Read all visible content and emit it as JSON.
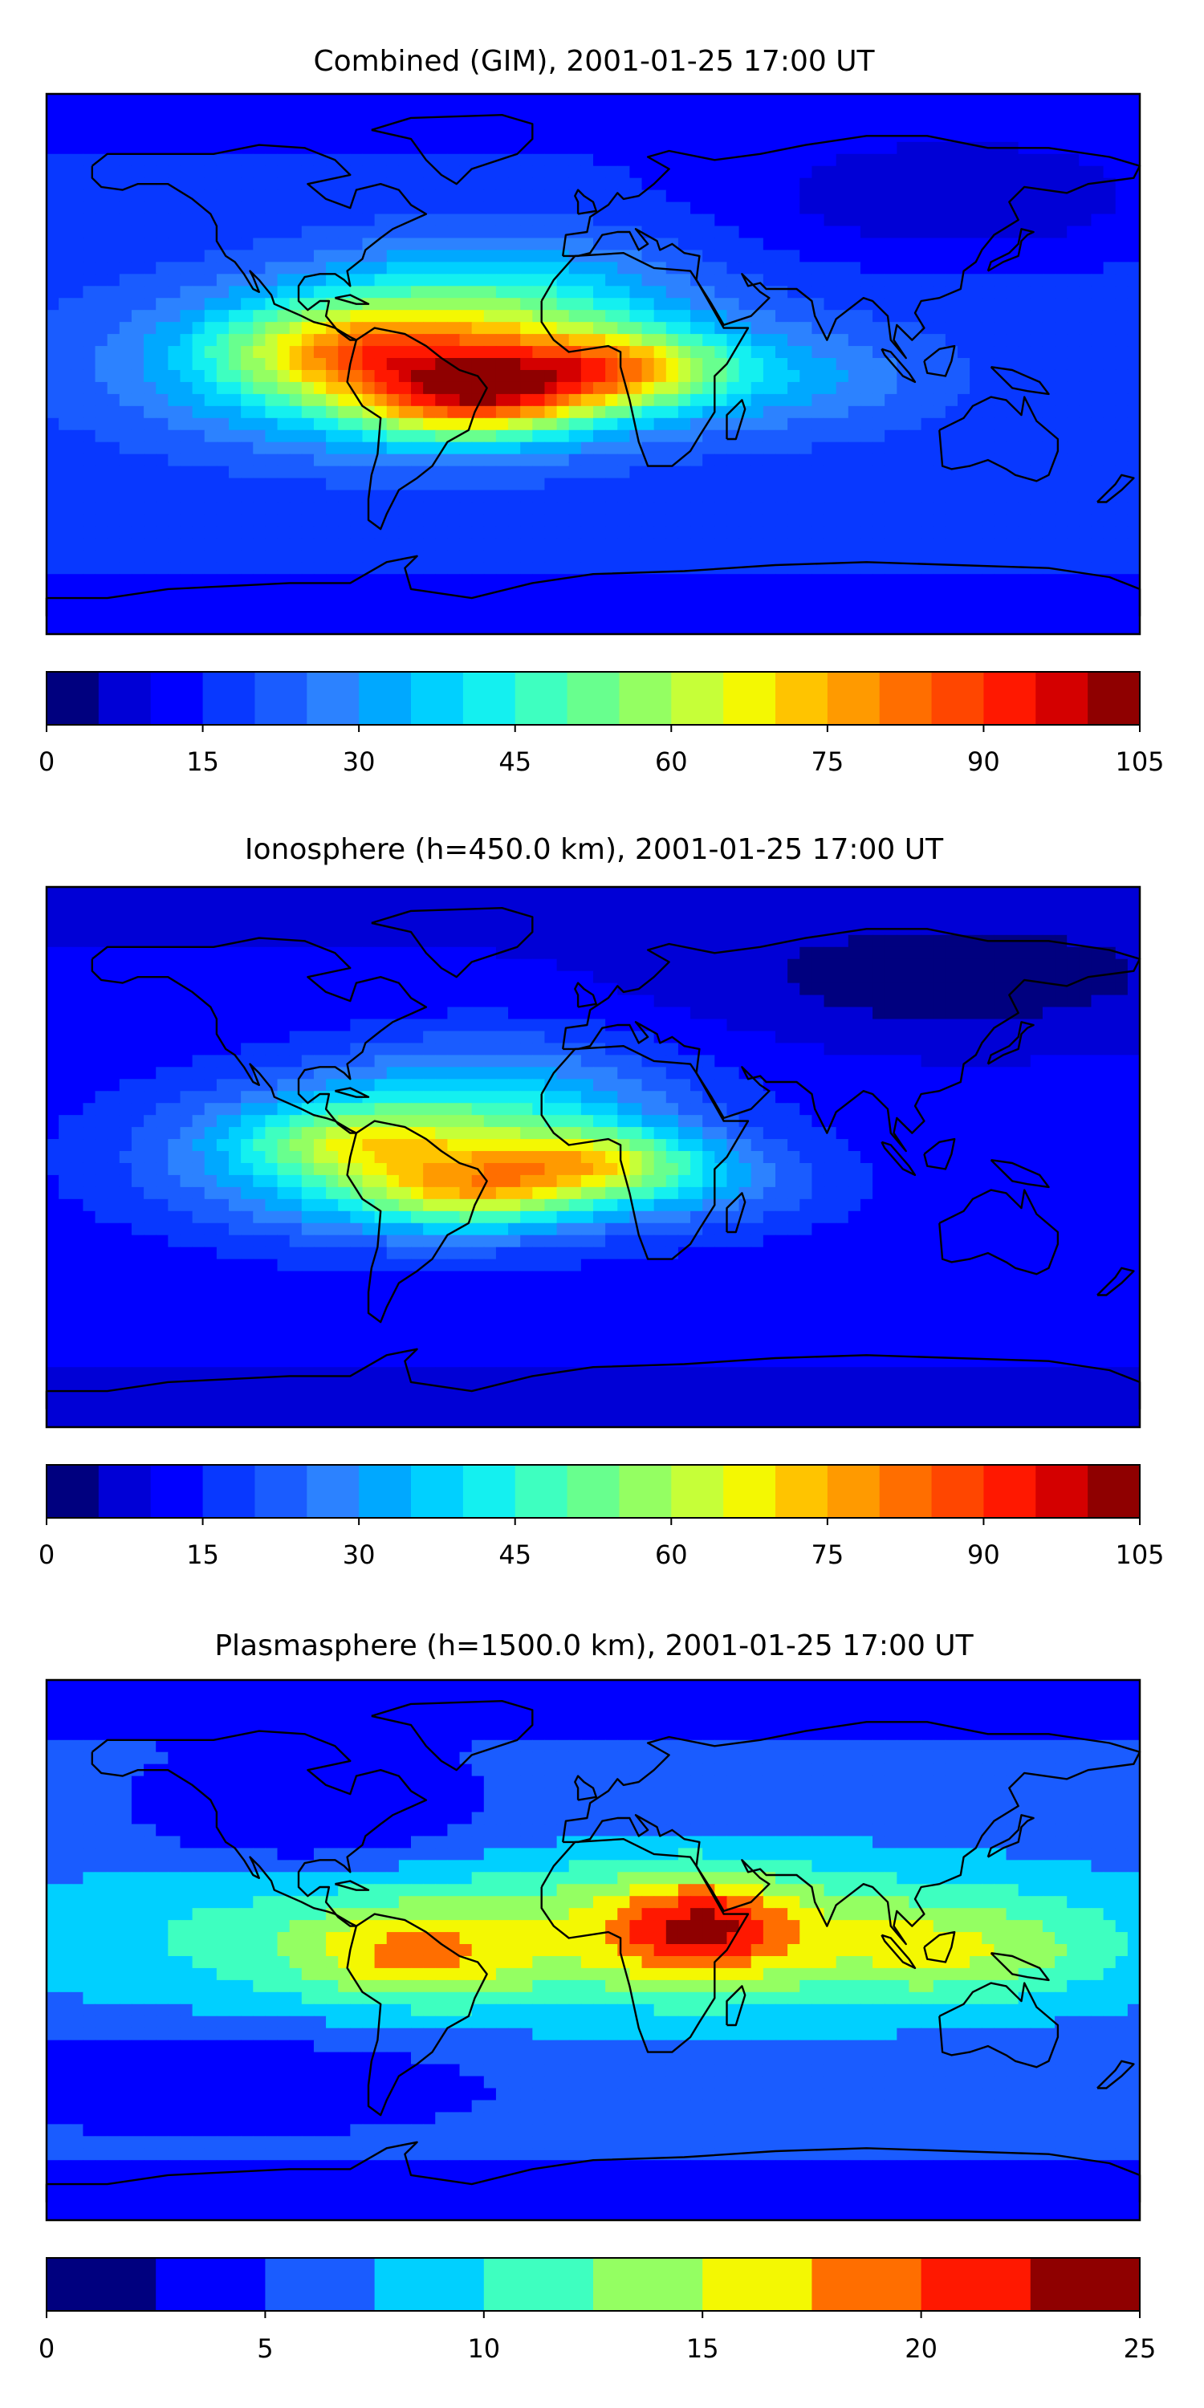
{
  "figure": {
    "panels": [
      {
        "title": "Combined (GIM), 2001-01-25 17:00 UT",
        "colorbar": {
          "min": 0,
          "max": 105,
          "step": 5,
          "tick_labels": [
            "0",
            "15",
            "30",
            "45",
            "60",
            "75",
            "90",
            "105"
          ],
          "tick_values": [
            0,
            15,
            30,
            45,
            60,
            75,
            90,
            105
          ]
        },
        "field": {
          "background": 18,
          "blobs": [
            {
              "lon": -55,
              "lat": 0,
              "amp": 45,
              "slon": 55,
              "slat": 18
            },
            {
              "lon": -40,
              "lat": -12,
              "amp": 40,
              "slon": 25,
              "slat": 9
            },
            {
              "lon": 5,
              "lat": -2,
              "amp": 40,
              "slon": 28,
              "slat": 9
            },
            {
              "lon": -80,
              "lat": 5,
              "amp": 25,
              "slon": 30,
              "slat": 10
            },
            {
              "lon": -30,
              "lat": 25,
              "amp": 15,
              "slon": 40,
              "slat": 15
            },
            {
              "lon": 70,
              "lat": -5,
              "amp": 10,
              "slon": 30,
              "slat": 12
            },
            {
              "lon": 120,
              "lat": 55,
              "amp": -12,
              "slon": 50,
              "slat": 15
            }
          ]
        }
      },
      {
        "title": "Ionosphere  (h=450.0 km), 2001-01-25 17:00 UT",
        "colorbar": {
          "min": 0,
          "max": 105,
          "step": 5,
          "tick_labels": [
            "0",
            "15",
            "30",
            "45",
            "60",
            "75",
            "90",
            "105"
          ],
          "tick_values": [
            0,
            15,
            30,
            45,
            60,
            75,
            90,
            105
          ]
        },
        "field": {
          "background": 12,
          "blobs": [
            {
              "lon": -55,
              "lat": 0,
              "amp": 40,
              "slon": 55,
              "slat": 18
            },
            {
              "lon": -40,
              "lat": -12,
              "amp": 28,
              "slon": 25,
              "slat": 8
            },
            {
              "lon": 0,
              "lat": -2,
              "amp": 30,
              "slon": 25,
              "slat": 8
            },
            {
              "lon": -80,
              "lat": 5,
              "amp": 18,
              "slon": 25,
              "slat": 8
            },
            {
              "lon": -30,
              "lat": 25,
              "amp": 12,
              "slon": 40,
              "slat": 15
            },
            {
              "lon": 40,
              "lat": -10,
              "amp": 10,
              "slon": 30,
              "slat": 10
            },
            {
              "lon": 120,
              "lat": 60,
              "amp": -10,
              "slon": 60,
              "slat": 15
            }
          ]
        }
      },
      {
        "title": "Plasmasphere (h=1500.0 km), 2001-01-25 17:00 UT",
        "colorbar": {
          "min": 0,
          "max": 25,
          "step": 2.5,
          "tick_labels": [
            "0",
            "5",
            "10",
            "15",
            "20",
            "25"
          ],
          "tick_values": [
            0,
            5,
            10,
            15,
            20,
            25
          ]
        },
        "field": {
          "background": 6,
          "blobs": [
            {
              "lon": 0,
              "lat": 5,
              "amp": 8,
              "slon": 120,
              "slat": 20
            },
            {
              "lon": 35,
              "lat": 8,
              "amp": 10,
              "slon": 22,
              "slat": 12
            },
            {
              "lon": -60,
              "lat": -2,
              "amp": 6,
              "slon": 25,
              "slat": 10
            },
            {
              "lon": 120,
              "lat": 0,
              "amp": 5,
              "slon": 35,
              "slat": 12
            },
            {
              "lon": -90,
              "lat": 40,
              "amp": -4,
              "slon": 40,
              "slat": 12
            },
            {
              "lon": -120,
              "lat": -40,
              "amp": -3,
              "slon": 60,
              "slat": 10
            }
          ]
        }
      }
    ],
    "colormap": [
      "#00007f",
      "#0000d6",
      "#0000ff",
      "#0838ff",
      "#1a5cff",
      "#2c82ff",
      "#00a8ff",
      "#00d0ff",
      "#14f0f0",
      "#3effc0",
      "#68ff8e",
      "#94ff62",
      "#c6ff38",
      "#f4f802",
      "#ffc400",
      "#ff9a00",
      "#ff6e00",
      "#ff4600",
      "#ff1800",
      "#d40000",
      "#8f0000"
    ],
    "coastline_color": "#000000"
  }
}
